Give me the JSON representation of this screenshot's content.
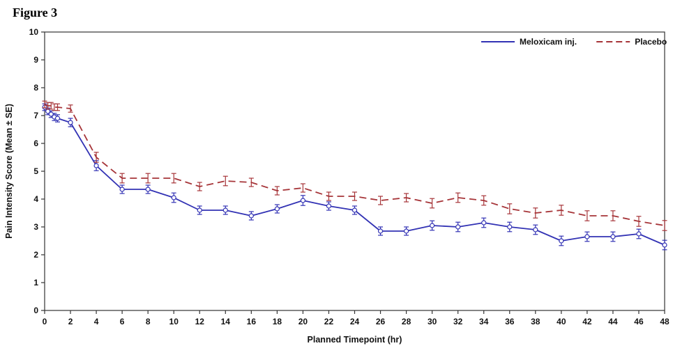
{
  "title": "Figure 3",
  "chart_data": {
    "type": "line",
    "title": "",
    "xlabel": "Planned Timepoint (hr)",
    "ylabel": "Pain Intensity Score (Mean ± SE)",
    "xlim": [
      0,
      48
    ],
    "ylim": [
      0,
      10
    ],
    "x_ticks": [
      0,
      2,
      4,
      6,
      8,
      10,
      12,
      14,
      16,
      18,
      20,
      22,
      24,
      26,
      28,
      30,
      32,
      34,
      36,
      38,
      40,
      42,
      44,
      46,
      48
    ],
    "y_ticks": [
      0,
      1,
      2,
      3,
      4,
      5,
      6,
      7,
      8,
      9,
      10
    ],
    "grid": false,
    "legend_position": "top-right",
    "x": [
      0,
      0.25,
      0.5,
      0.75,
      1,
      2,
      4,
      6,
      8,
      10,
      12,
      14,
      16,
      18,
      20,
      22,
      24,
      26,
      28,
      30,
      32,
      34,
      36,
      38,
      40,
      42,
      44,
      46,
      48
    ],
    "series": [
      {
        "name": "Meloxicam inj.",
        "color": "#3232b4",
        "style": "solid",
        "marker": "circle-open",
        "values": [
          7.3,
          7.15,
          7.05,
          6.95,
          6.9,
          6.75,
          5.2,
          4.35,
          4.35,
          4.05,
          3.6,
          3.6,
          3.4,
          3.65,
          3.95,
          3.75,
          3.6,
          2.85,
          2.85,
          3.05,
          3.0,
          3.15,
          3.0,
          2.9,
          2.5,
          2.65,
          2.65,
          2.75,
          2.35
        ],
        "se": [
          0.12,
          0.12,
          0.12,
          0.13,
          0.13,
          0.15,
          0.18,
          0.15,
          0.15,
          0.17,
          0.15,
          0.15,
          0.15,
          0.15,
          0.18,
          0.15,
          0.15,
          0.15,
          0.15,
          0.17,
          0.17,
          0.17,
          0.17,
          0.17,
          0.17,
          0.17,
          0.17,
          0.17,
          0.17
        ]
      },
      {
        "name": "Placebo",
        "color": "#a63438",
        "style": "dashed",
        "marker": "none",
        "values": [
          7.4,
          7.35,
          7.35,
          7.3,
          7.3,
          7.25,
          5.5,
          4.75,
          4.75,
          4.75,
          4.45,
          4.65,
          4.6,
          4.3,
          4.4,
          4.1,
          4.1,
          3.95,
          4.05,
          3.85,
          4.05,
          3.95,
          3.65,
          3.5,
          3.6,
          3.4,
          3.4,
          3.2,
          3.05
        ],
        "se": [
          0.12,
          0.12,
          0.12,
          0.12,
          0.12,
          0.13,
          0.18,
          0.17,
          0.17,
          0.17,
          0.15,
          0.17,
          0.15,
          0.15,
          0.15,
          0.15,
          0.15,
          0.15,
          0.15,
          0.17,
          0.17,
          0.17,
          0.18,
          0.18,
          0.18,
          0.18,
          0.18,
          0.18,
          0.18
        ]
      }
    ]
  }
}
